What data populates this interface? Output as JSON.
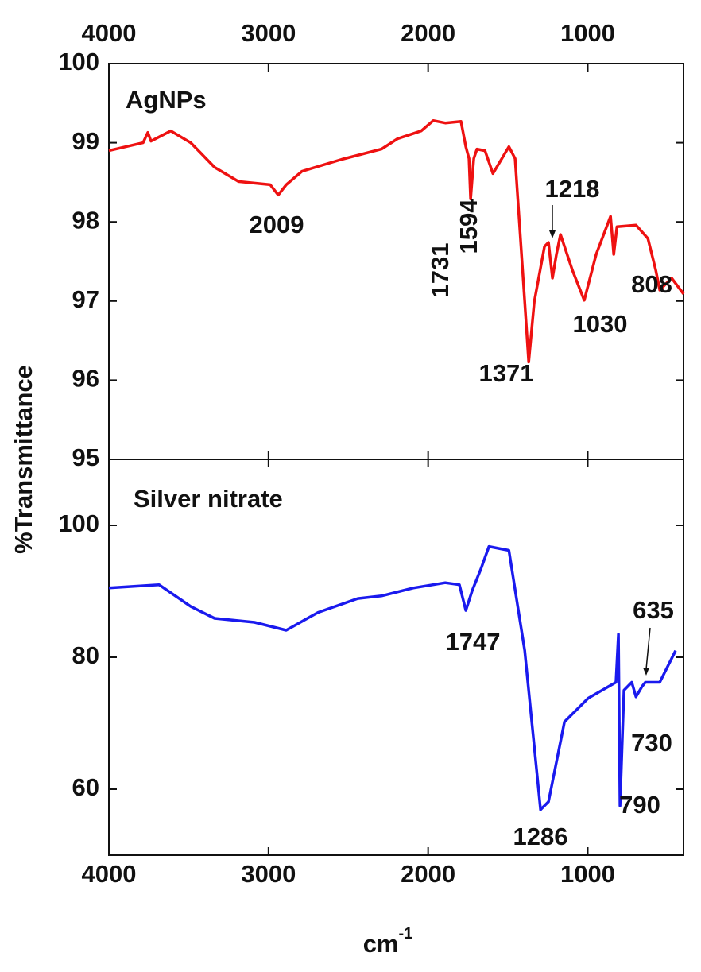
{
  "ylabel": "%Transmittance",
  "xlabel": "cm",
  "xlabel_sup": "-1",
  "chart_data": [
    {
      "type": "line",
      "title": "AgNPs",
      "color": "#ee1111",
      "x": [
        4000,
        3786,
        3756,
        3736,
        3612,
        3487,
        3338,
        3188,
        2989,
        2939,
        2889,
        2790,
        2541,
        2292,
        2192,
        2043,
        1968,
        1893,
        1794,
        1764,
        1744,
        1734,
        1714,
        1694,
        1644,
        1594,
        1494,
        1455,
        1395,
        1370,
        1335,
        1271,
        1246,
        1221,
        1196,
        1171,
        1096,
        1022,
        947,
        857,
        837,
        817,
        698,
        623,
        574,
        549,
        474,
        400
      ],
      "values": [
        98.9,
        99.0,
        99.13,
        99.02,
        99.15,
        99.0,
        98.69,
        98.51,
        98.47,
        98.34,
        98.47,
        98.64,
        98.79,
        98.92,
        99.05,
        99.15,
        99.28,
        99.25,
        99.27,
        98.95,
        98.8,
        98.29,
        98.8,
        98.92,
        98.9,
        98.61,
        98.95,
        98.8,
        96.99,
        96.23,
        96.99,
        97.69,
        97.74,
        97.29,
        97.59,
        97.84,
        97.39,
        97.01,
        97.59,
        98.07,
        97.59,
        97.94,
        97.96,
        97.79,
        97.39,
        97.14,
        97.29,
        97.09
      ],
      "xlim": [
        4000,
        400
      ],
      "xticks": [
        4000,
        3000,
        2000,
        1000
      ],
      "ylim": [
        95,
        100
      ],
      "yticks": [
        95,
        96,
        97,
        98,
        99,
        100
      ],
      "annotations": [
        "2009",
        "1218",
        "1594",
        "1731",
        "1371",
        "1030",
        "808"
      ]
    },
    {
      "type": "line",
      "title": "Silver nitrate",
      "color": "#1a1aee",
      "x": [
        4000,
        3686,
        3487,
        3338,
        3088,
        2889,
        2690,
        2441,
        2292,
        2093,
        1893,
        1804,
        1764,
        1724,
        1669,
        1619,
        1494,
        1395,
        1296,
        1246,
        1146,
        997,
        823,
        808,
        798,
        773,
        724,
        698,
        659,
        639,
        549,
        450
      ],
      "values": [
        90.5,
        91.0,
        87.7,
        85.9,
        85.3,
        84.1,
        86.8,
        88.9,
        89.3,
        90.5,
        91.3,
        91.0,
        87.1,
        90.1,
        93.4,
        96.8,
        96.2,
        81.0,
        56.9,
        58.1,
        70.2,
        73.8,
        76.2,
        83.5,
        57.5,
        75.0,
        76.2,
        74.0,
        75.6,
        76.2,
        76.2,
        81.0
      ],
      "xlim": [
        4000,
        400
      ],
      "xticks": [
        4000,
        3000,
        2000,
        1000
      ],
      "ylim": [
        50,
        110
      ],
      "yticks": [
        60,
        80,
        100
      ],
      "annotations": [
        "1747",
        "635",
        "730",
        "790",
        "1286"
      ]
    }
  ]
}
